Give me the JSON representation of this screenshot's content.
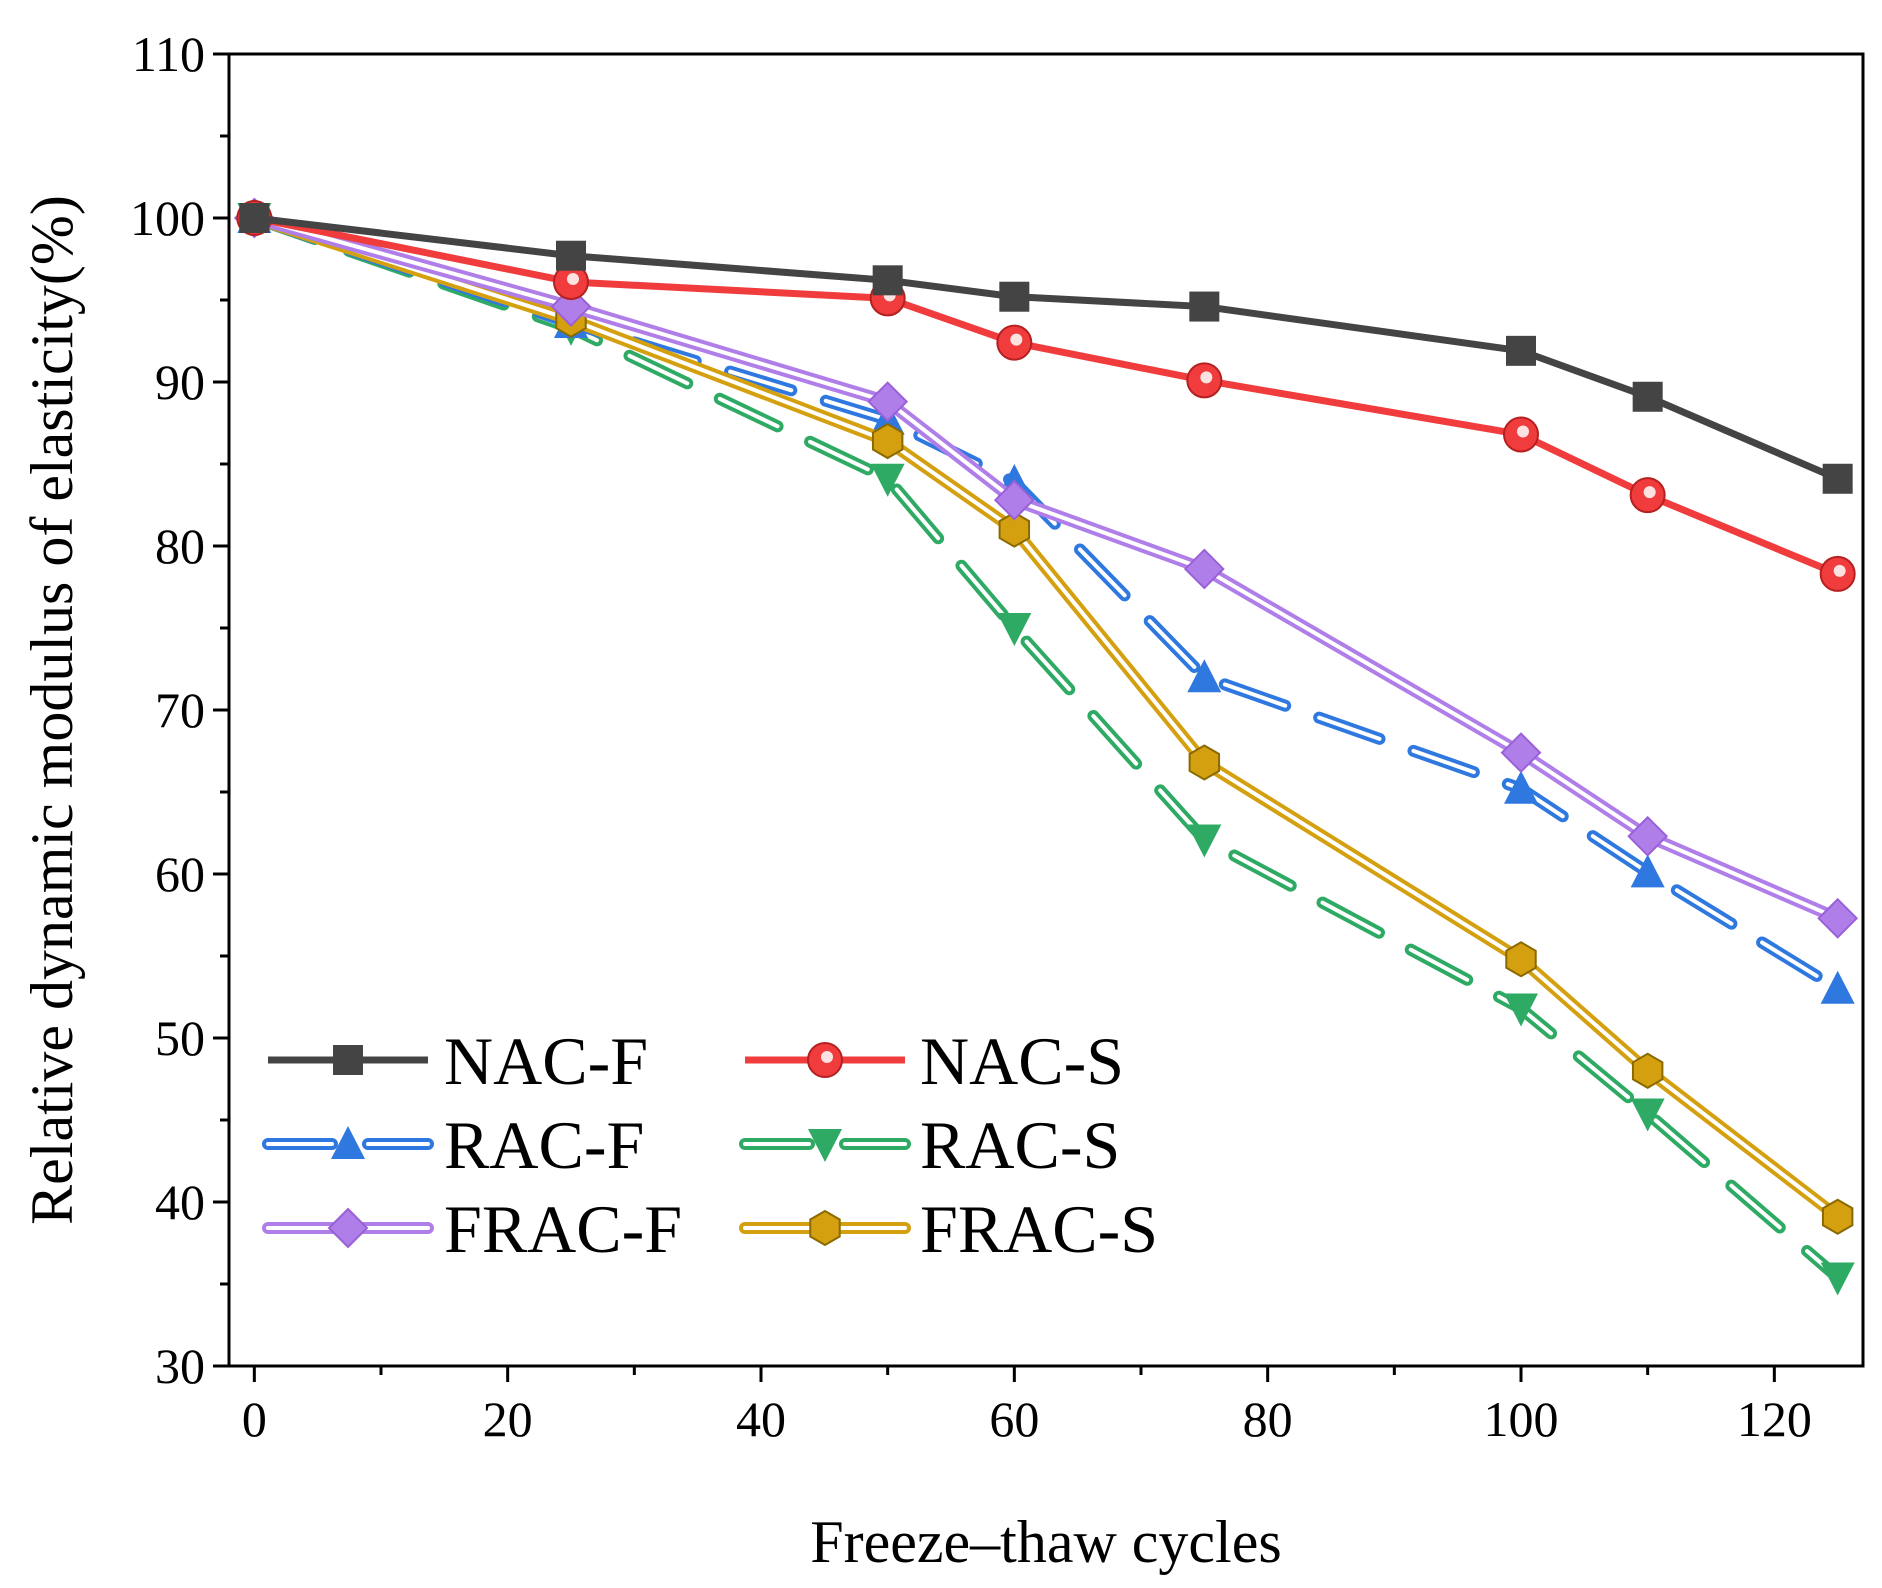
{
  "chart_data": {
    "type": "line",
    "title": "",
    "xlabel": "Freeze–thaw cycles",
    "ylabel": "Relative dynamic modulus of elasticity(%)",
    "xlim": [
      -2,
      127
    ],
    "ylim": [
      30,
      110
    ],
    "xticks": [
      0,
      20,
      40,
      60,
      80,
      100,
      120
    ],
    "yticks": [
      30,
      40,
      50,
      60,
      70,
      80,
      90,
      100,
      110
    ],
    "grid": false,
    "legend_placement": "bottom-left",
    "x": [
      0,
      25,
      50,
      60,
      75,
      100,
      110,
      125
    ],
    "series": [
      {
        "name": "NAC-F",
        "color": "#444444",
        "marker": "square",
        "style": "solid",
        "values": [
          100,
          97.7,
          96.2,
          95.2,
          94.6,
          91.9,
          89.1,
          84.1
        ]
      },
      {
        "name": "NAC-S",
        "color": "#f03c3c",
        "marker": "circle",
        "style": "solid",
        "values": [
          100,
          96.1,
          95.1,
          92.4,
          90.1,
          86.8,
          83.1,
          78.3
        ]
      },
      {
        "name": "RAC-F",
        "color": "#2f78e0",
        "marker": "triangle-up",
        "style": "dashed-double",
        "values": [
          100,
          93.6,
          87.7,
          83.9,
          72.0,
          65.2,
          60.1,
          53.0
        ]
      },
      {
        "name": "RAC-S",
        "color": "#2eaa64",
        "marker": "triangle-down",
        "style": "dashed-double",
        "values": [
          100,
          93.3,
          84.1,
          75.0,
          62.1,
          51.8,
          45.4,
          35.4
        ]
      },
      {
        "name": "FRAC-F",
        "color": "#b07ee8",
        "marker": "diamond",
        "style": "solid-double",
        "values": [
          100,
          94.6,
          88.8,
          82.8,
          78.6,
          67.4,
          62.3,
          57.3
        ]
      },
      {
        "name": "FRAC-S",
        "color": "#d4a010",
        "marker": "hexagon",
        "style": "solid-double",
        "values": [
          100,
          93.8,
          86.4,
          81.0,
          66.8,
          54.8,
          48.0,
          39.1
        ]
      }
    ]
  }
}
